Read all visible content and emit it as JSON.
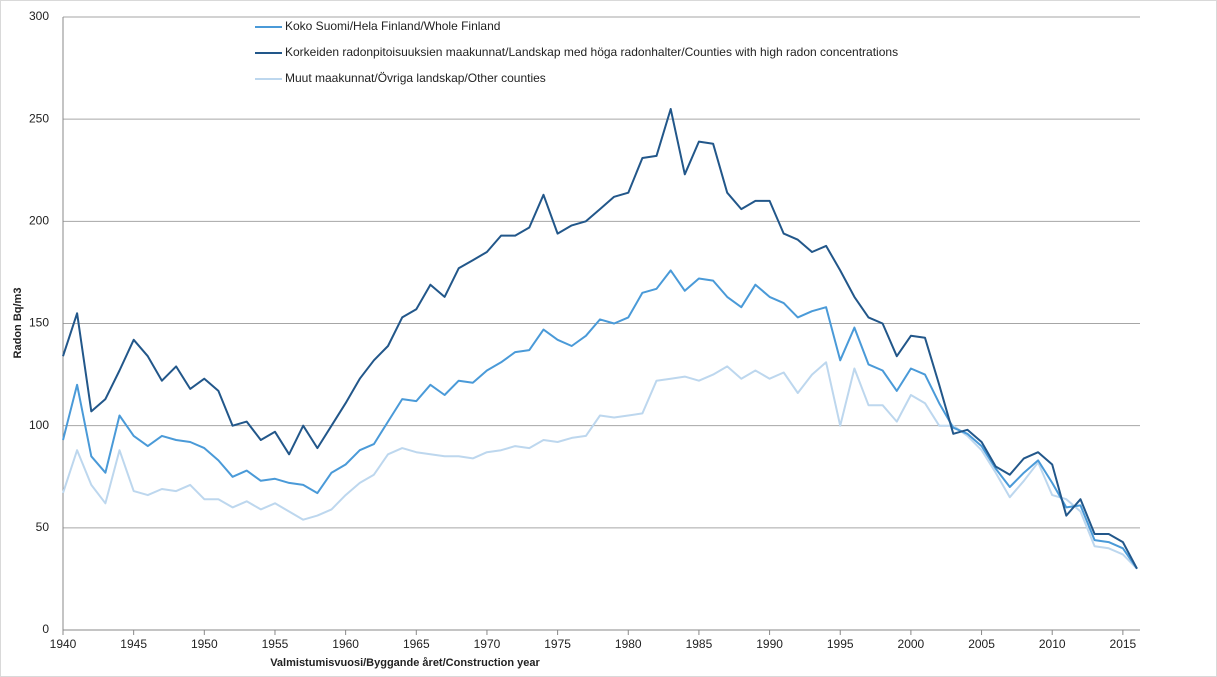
{
  "chart_data": {
    "type": "line",
    "xlabel": "Valmistumisvuosi/Byggande året/Construction year",
    "ylabel": "Radon Bq/m3",
    "x": [
      1940,
      1941,
      1942,
      1943,
      1944,
      1945,
      1946,
      1947,
      1948,
      1949,
      1950,
      1951,
      1952,
      1953,
      1954,
      1955,
      1956,
      1957,
      1958,
      1959,
      1960,
      1961,
      1962,
      1963,
      1964,
      1965,
      1966,
      1967,
      1968,
      1969,
      1970,
      1971,
      1972,
      1973,
      1974,
      1975,
      1976,
      1977,
      1978,
      1979,
      1980,
      1981,
      1982,
      1983,
      1984,
      1985,
      1986,
      1987,
      1988,
      1989,
      1990,
      1991,
      1992,
      1993,
      1994,
      1995,
      1996,
      1997,
      1998,
      1999,
      2000,
      2001,
      2002,
      2003,
      2004,
      2005,
      2006,
      2007,
      2008,
      2009,
      2010,
      2011,
      2012,
      2013,
      2014,
      2015,
      2016
    ],
    "series": [
      {
        "name": "Koko Suomi/Hela Finland/Whole Finland",
        "color": "#4a9ad8",
        "values": [
          93,
          120,
          85,
          77,
          105,
          95,
          90,
          95,
          93,
          92,
          89,
          83,
          75,
          78,
          73,
          74,
          72,
          71,
          67,
          77,
          81,
          88,
          91,
          102,
          113,
          112,
          120,
          115,
          122,
          121,
          127,
          131,
          136,
          137,
          147,
          142,
          139,
          144,
          152,
          150,
          153,
          165,
          167,
          176,
          166,
          172,
          171,
          163,
          158,
          169,
          163,
          160,
          153,
          156,
          158,
          132,
          148,
          130,
          127,
          117,
          128,
          125,
          111,
          99,
          96,
          90,
          79,
          70,
          77,
          83,
          72,
          60,
          61,
          44,
          43,
          40,
          30
        ]
      },
      {
        "name": "Korkeiden radonpitoisuuksien maakunnat/Landskap med höga radonhalter/Counties with high radon concentrations",
        "color": "#22578a",
        "values": [
          134,
          155,
          107,
          113,
          127,
          142,
          134,
          122,
          129,
          118,
          123,
          117,
          100,
          102,
          93,
          97,
          86,
          100,
          89,
          100,
          111,
          123,
          132,
          139,
          153,
          157,
          169,
          163,
          177,
          181,
          185,
          193,
          193,
          197,
          213,
          194,
          198,
          200,
          206,
          212,
          214,
          231,
          232,
          255,
          223,
          239,
          238,
          214,
          206,
          210,
          210,
          194,
          191,
          185,
          188,
          176,
          163,
          153,
          150,
          134,
          144,
          143,
          120,
          96,
          98,
          92,
          80,
          76,
          84,
          87,
          81,
          56,
          64,
          47,
          47,
          43,
          30
        ]
      },
      {
        "name": "Muut maakunnat/Övriga landskap/Other counties",
        "color": "#bdd7ee",
        "values": [
          67,
          88,
          71,
          62,
          88,
          68,
          66,
          69,
          68,
          71,
          64,
          64,
          60,
          63,
          59,
          62,
          58,
          54,
          56,
          59,
          66,
          72,
          76,
          86,
          89,
          87,
          86,
          85,
          85,
          84,
          87,
          88,
          90,
          89,
          93,
          92,
          94,
          95,
          105,
          104,
          105,
          106,
          122,
          123,
          124,
          122,
          125,
          129,
          123,
          127,
          123,
          126,
          116,
          125,
          131,
          100,
          128,
          110,
          110,
          102,
          115,
          111,
          100,
          100,
          95,
          88,
          77,
          65,
          73,
          82,
          66,
          64,
          58,
          41,
          40,
          37,
          30
        ]
      }
    ],
    "xlim": [
      1940,
      2016
    ],
    "xticks": [
      1940,
      1945,
      1950,
      1955,
      1960,
      1965,
      1970,
      1975,
      1980,
      1985,
      1990,
      1995,
      2000,
      2005,
      2010,
      2015
    ],
    "ylim": [
      0,
      300
    ],
    "yticks": [
      0,
      50,
      100,
      150,
      200,
      250,
      300
    ],
    "grid": true
  }
}
